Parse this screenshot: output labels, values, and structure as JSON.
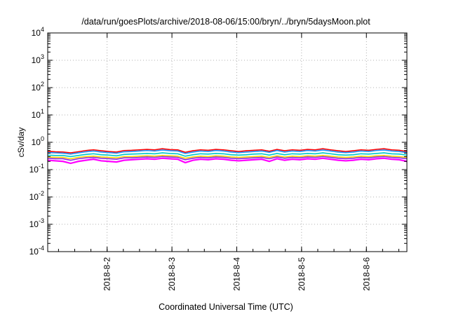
{
  "chart_data": {
    "type": "area",
    "title": "/data/run/goesPlots/archive/2018-08-06/15:00/bryn/../bryn/5daysMoon.plot",
    "xlabel": "Coordinated Universal Time (UTC)",
    "ylabel": "cSv/day",
    "y_scale": "log",
    "ylim": [
      0.0001,
      10000
    ],
    "yticks": [
      {
        "value": 0.0001,
        "base": "10",
        "exp": "-4"
      },
      {
        "value": 0.001,
        "base": "10",
        "exp": "-3"
      },
      {
        "value": 0.01,
        "base": "10",
        "exp": "-2"
      },
      {
        "value": 0.1,
        "base": "10",
        "exp": "-1"
      },
      {
        "value": 1,
        "base": "10",
        "exp": "0"
      },
      {
        "value": 10,
        "base": "10",
        "exp": "1"
      },
      {
        "value": 100,
        "base": "10",
        "exp": "2"
      },
      {
        "value": 1000,
        "base": "10",
        "exp": "3"
      },
      {
        "value": 10000,
        "base": "10",
        "exp": "4"
      }
    ],
    "xlim": [
      "2018-08-01T02:00",
      "2018-08-06T15:00"
    ],
    "xticks": [
      {
        "value": "2018-08-02T00:00",
        "label": "2018-8-2"
      },
      {
        "value": "2018-08-03T00:00",
        "label": "2018-8-3"
      },
      {
        "value": "2018-08-04T00:00",
        "label": "2018-8-4"
      },
      {
        "value": "2018-08-05T00:00",
        "label": "2018-8-5"
      },
      {
        "value": "2018-08-06T00:00",
        "label": "2018-8-6"
      }
    ],
    "grid": true,
    "x_step_hours": 3,
    "series": [
      {
        "color": "#ff00ff",
        "values": [
          0.22,
          0.21,
          0.2,
          0.17,
          0.2,
          0.22,
          0.24,
          0.21,
          0.2,
          0.19,
          0.22,
          0.23,
          0.24,
          0.25,
          0.24,
          0.26,
          0.25,
          0.24,
          0.18,
          0.22,
          0.24,
          0.23,
          0.25,
          0.24,
          0.22,
          0.21,
          0.22,
          0.23,
          0.24,
          0.2,
          0.25,
          0.22,
          0.24,
          0.23,
          0.25,
          0.24,
          0.26,
          0.24,
          0.22,
          0.21,
          0.22,
          0.24,
          0.23,
          0.25,
          0.26,
          0.24,
          0.23,
          0.2
        ]
      },
      {
        "color": "#8a2be2",
        "values": [
          0.26,
          0.25,
          0.25,
          0.22,
          0.25,
          0.27,
          0.28,
          0.26,
          0.25,
          0.24,
          0.27,
          0.27,
          0.28,
          0.29,
          0.28,
          0.3,
          0.29,
          0.28,
          0.23,
          0.26,
          0.28,
          0.27,
          0.29,
          0.28,
          0.26,
          0.25,
          0.26,
          0.27,
          0.28,
          0.25,
          0.29,
          0.26,
          0.28,
          0.27,
          0.29,
          0.28,
          0.3,
          0.28,
          0.26,
          0.25,
          0.26,
          0.28,
          0.27,
          0.29,
          0.3,
          0.28,
          0.27,
          0.25
        ]
      },
      {
        "color": "#ffd700",
        "values": [
          0.29,
          0.28,
          0.28,
          0.25,
          0.28,
          0.3,
          0.31,
          0.29,
          0.28,
          0.27,
          0.3,
          0.3,
          0.31,
          0.32,
          0.31,
          0.33,
          0.32,
          0.31,
          0.26,
          0.29,
          0.31,
          0.3,
          0.32,
          0.31,
          0.29,
          0.28,
          0.29,
          0.3,
          0.31,
          0.28,
          0.32,
          0.29,
          0.31,
          0.3,
          0.32,
          0.31,
          0.33,
          0.31,
          0.29,
          0.28,
          0.29,
          0.31,
          0.3,
          0.32,
          0.33,
          0.31,
          0.3,
          0.28
        ]
      },
      {
        "color": "#00c8c8",
        "values": [
          0.34,
          0.33,
          0.33,
          0.3,
          0.33,
          0.36,
          0.38,
          0.35,
          0.34,
          0.32,
          0.36,
          0.37,
          0.38,
          0.39,
          0.38,
          0.41,
          0.39,
          0.38,
          0.31,
          0.35,
          0.38,
          0.37,
          0.39,
          0.38,
          0.35,
          0.34,
          0.35,
          0.37,
          0.38,
          0.34,
          0.39,
          0.35,
          0.38,
          0.37,
          0.39,
          0.38,
          0.41,
          0.38,
          0.35,
          0.34,
          0.35,
          0.38,
          0.37,
          0.39,
          0.41,
          0.38,
          0.37,
          0.34
        ]
      },
      {
        "color": "#1e90ff",
        "values": [
          0.42,
          0.41,
          0.4,
          0.37,
          0.41,
          0.45,
          0.48,
          0.44,
          0.42,
          0.4,
          0.45,
          0.46,
          0.48,
          0.5,
          0.48,
          0.52,
          0.49,
          0.48,
          0.39,
          0.44,
          0.48,
          0.46,
          0.5,
          0.48,
          0.44,
          0.42,
          0.44,
          0.46,
          0.48,
          0.43,
          0.5,
          0.44,
          0.48,
          0.46,
          0.5,
          0.48,
          0.52,
          0.48,
          0.44,
          0.42,
          0.44,
          0.48,
          0.46,
          0.5,
          0.52,
          0.48,
          0.46,
          0.42
        ]
      },
      {
        "color": "#ff0000",
        "values": [
          0.47,
          0.45,
          0.44,
          0.41,
          0.45,
          0.5,
          0.53,
          0.49,
          0.46,
          0.44,
          0.5,
          0.51,
          0.53,
          0.55,
          0.53,
          0.58,
          0.54,
          0.53,
          0.43,
          0.49,
          0.53,
          0.51,
          0.55,
          0.53,
          0.49,
          0.46,
          0.49,
          0.51,
          0.53,
          0.47,
          0.55,
          0.49,
          0.53,
          0.51,
          0.55,
          0.53,
          0.58,
          0.53,
          0.49,
          0.46,
          0.49,
          0.53,
          0.51,
          0.55,
          0.58,
          0.53,
          0.51,
          0.46
        ]
      }
    ]
  }
}
